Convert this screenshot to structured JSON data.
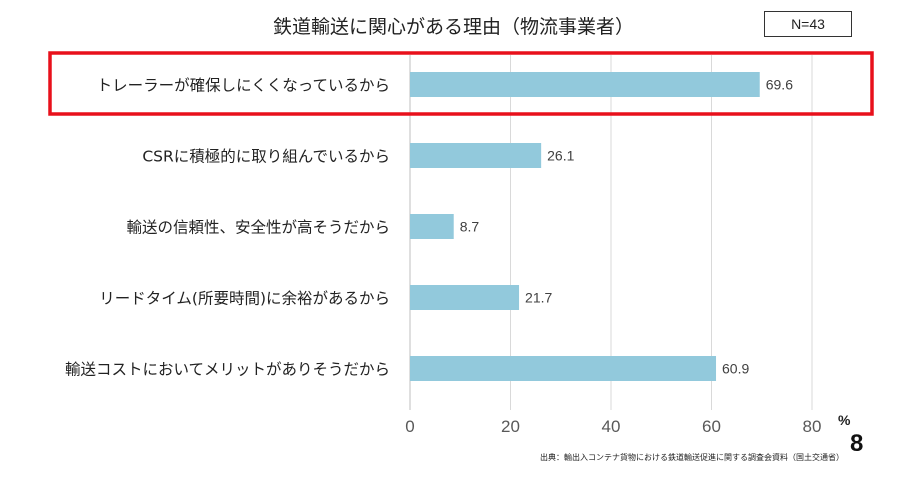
{
  "title": "鉄道輸送に関心がある理由（物流事業者）",
  "n_label": "N=43",
  "percent_unit": "%",
  "source": "出典：輸出入コンテナ貨物における鉄道輸送促進に関する調査会資料（国土交通省）",
  "page_number": "8",
  "colors": {
    "bar": "#92C9DC",
    "highlight": "#E8101B",
    "grid": "#D9D9D9",
    "axis_text": "#595959"
  },
  "chart_data": {
    "type": "bar",
    "orientation": "horizontal",
    "categories": [
      "トレーラーが確保しにくくなっているから",
      "CSRに積極的に取り組んでいるから",
      "輸送の信頼性、安全性が高そうだから",
      "リードタイム(所要時間)に余裕があるから",
      "輸送コストにおいてメリットがありそうだから"
    ],
    "values": [
      69.6,
      26.1,
      8.7,
      21.7,
      60.9
    ],
    "xlim": [
      0,
      80
    ],
    "xticks": [
      0,
      20,
      40,
      60,
      80
    ],
    "x_unit": "%",
    "highlighted_index": 0,
    "grid": true
  }
}
